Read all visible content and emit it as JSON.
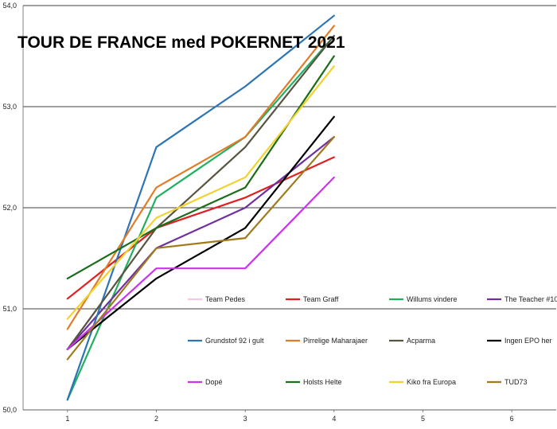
{
  "chart_data": {
    "type": "line",
    "title": "TOUR DE FRANCE med POKERNET 2021",
    "x": [
      1,
      2,
      3,
      4
    ],
    "x_ticks": [
      "1",
      "2",
      "3",
      "4",
      "5",
      "6"
    ],
    "xlim": [
      0.5,
      6.5
    ],
    "ylim": [
      50.0,
      54.0
    ],
    "y_ticks": [
      "50,0",
      "51,0",
      "52,0",
      "53,0",
      "54,0"
    ],
    "grid": "horizontal",
    "legend_position": "inside-bottom",
    "series": [
      {
        "name": "Team Pedes",
        "color": "#f4c6ea",
        "values": [
          null,
          null,
          null,
          null
        ]
      },
      {
        "name": "Team Graff",
        "color": "#e02020",
        "values": [
          51.1,
          51.8,
          52.1,
          52.5
        ]
      },
      {
        "name": "Willums vindere",
        "color": "#20b060",
        "values": [
          50.1,
          52.1,
          52.7,
          53.7
        ]
      },
      {
        "name": "The Teacher #10",
        "color": "#7030a0",
        "values": [
          50.6,
          51.6,
          52.0,
          52.7
        ]
      },
      {
        "name": "Grundstof 92 i gult",
        "color": "#2e75b6",
        "values": [
          50.1,
          52.6,
          53.2,
          53.9
        ]
      },
      {
        "name": "Pirrelige Maharajaer",
        "color": "#e07b29",
        "values": [
          50.8,
          52.2,
          52.7,
          53.8
        ]
      },
      {
        "name": "Acparma",
        "color": "#595440",
        "values": [
          50.6,
          51.8,
          52.6,
          53.7
        ]
      },
      {
        "name": "Ingen EPO her",
        "color": "#000000",
        "values": [
          50.6,
          51.3,
          51.8,
          52.9
        ]
      },
      {
        "name": "Dopé",
        "color": "#cc33ee",
        "values": [
          50.6,
          51.4,
          51.4,
          52.3
        ]
      },
      {
        "name": "Holsts Helte",
        "color": "#1a6e1a",
        "values": [
          51.3,
          51.8,
          52.2,
          53.5
        ]
      },
      {
        "name": "Kiko fra Europa",
        "color": "#f2d22e",
        "values": [
          50.9,
          51.9,
          52.3,
          53.4
        ]
      },
      {
        "name": "TUD73",
        "color": "#a07a1c",
        "values": [
          50.5,
          51.6,
          51.7,
          52.7
        ]
      }
    ]
  }
}
